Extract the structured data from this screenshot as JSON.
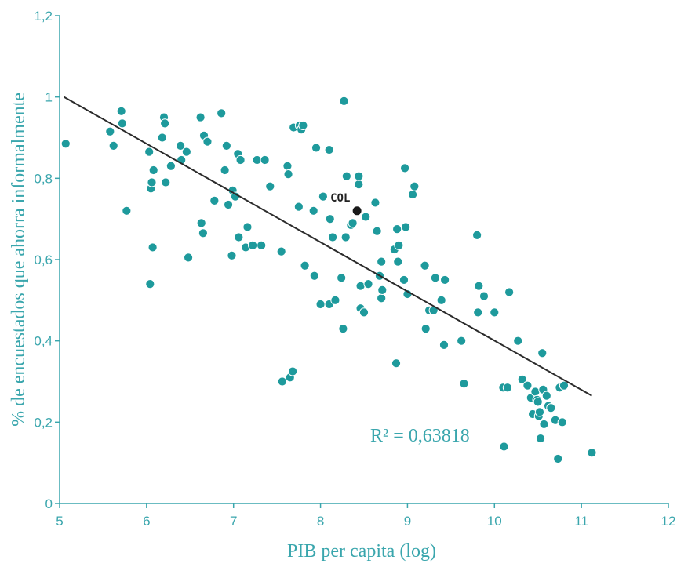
{
  "chart_data": {
    "type": "scatter",
    "xlabel": "PIB per capita (log)",
    "ylabel": "% de encuestados que ahorra informalmente",
    "xlim": [
      5,
      12
    ],
    "ylim": [
      0,
      1.2
    ],
    "x_ticks": [
      "5",
      "6",
      "7",
      "8",
      "9",
      "10",
      "11",
      "12"
    ],
    "y_ticks": [
      "0",
      "0,2",
      "0,4",
      "0,6",
      "0,8",
      "1",
      "1,2"
    ],
    "grid": false,
    "annotation": "R² = 0,63818",
    "trendline": {
      "x": [
        5.05,
        11.12
      ],
      "y": [
        1.0,
        0.265
      ]
    },
    "highlight": {
      "label": "COL",
      "x": 8.42,
      "y": 0.72
    },
    "colors": {
      "points": "#1e9a9c",
      "axis": "#3aa6ad",
      "trendline": "#2b2b2b",
      "highlight": "#1a1a1a"
    },
    "points": [
      [
        5.07,
        0.885
      ],
      [
        5.58,
        0.915
      ],
      [
        5.62,
        0.88
      ],
      [
        5.71,
        0.965
      ],
      [
        5.72,
        0.935
      ],
      [
        5.77,
        0.72
      ],
      [
        6.03,
        0.865
      ],
      [
        6.04,
        0.54
      ],
      [
        6.05,
        0.775
      ],
      [
        6.06,
        0.79
      ],
      [
        6.07,
        0.63
      ],
      [
        6.08,
        0.82
      ],
      [
        6.18,
        0.9
      ],
      [
        6.2,
        0.95
      ],
      [
        6.21,
        0.935
      ],
      [
        6.22,
        0.79
      ],
      [
        6.28,
        0.83
      ],
      [
        6.39,
        0.88
      ],
      [
        6.4,
        0.845
      ],
      [
        6.46,
        0.865
      ],
      [
        6.48,
        0.605
      ],
      [
        6.62,
        0.95
      ],
      [
        6.63,
        0.69
      ],
      [
        6.65,
        0.665
      ],
      [
        6.66,
        0.905
      ],
      [
        6.7,
        0.89
      ],
      [
        6.78,
        0.745
      ],
      [
        6.86,
        0.96
      ],
      [
        6.9,
        0.82
      ],
      [
        6.92,
        0.88
      ],
      [
        6.94,
        0.735
      ],
      [
        6.98,
        0.61
      ],
      [
        6.99,
        0.77
      ],
      [
        7.02,
        0.755
      ],
      [
        7.05,
        0.86
      ],
      [
        7.06,
        0.655
      ],
      [
        7.08,
        0.845
      ],
      [
        7.14,
        0.63
      ],
      [
        7.16,
        0.68
      ],
      [
        7.22,
        0.635
      ],
      [
        7.27,
        0.845
      ],
      [
        7.32,
        0.635
      ],
      [
        7.36,
        0.845
      ],
      [
        7.42,
        0.78
      ],
      [
        7.55,
        0.62
      ],
      [
        7.56,
        0.3
      ],
      [
        7.62,
        0.83
      ],
      [
        7.63,
        0.81
      ],
      [
        7.65,
        0.31
      ],
      [
        7.68,
        0.325
      ],
      [
        7.69,
        0.925
      ],
      [
        7.76,
        0.93
      ],
      [
        7.78,
        0.92
      ],
      [
        7.8,
        0.93
      ],
      [
        7.75,
        0.73
      ],
      [
        7.82,
        0.585
      ],
      [
        7.92,
        0.72
      ],
      [
        7.93,
        0.56
      ],
      [
        7.95,
        0.875
      ],
      [
        8.0,
        0.49
      ],
      [
        8.03,
        0.755
      ],
      [
        8.1,
        0.87
      ],
      [
        8.1,
        0.49
      ],
      [
        8.11,
        0.7
      ],
      [
        8.14,
        0.655
      ],
      [
        8.17,
        0.5
      ],
      [
        8.24,
        0.555
      ],
      [
        8.26,
        0.43
      ],
      [
        8.27,
        0.99
      ],
      [
        8.29,
        0.655
      ],
      [
        8.3,
        0.805
      ],
      [
        8.35,
        0.685
      ],
      [
        8.37,
        0.69
      ],
      [
        8.44,
        0.785
      ],
      [
        8.44,
        0.805
      ],
      [
        8.46,
        0.48
      ],
      [
        8.46,
        0.535
      ],
      [
        8.5,
        0.47
      ],
      [
        8.52,
        0.705
      ],
      [
        8.55,
        0.54
      ],
      [
        8.63,
        0.74
      ],
      [
        8.65,
        0.67
      ],
      [
        8.68,
        0.56
      ],
      [
        8.7,
        0.595
      ],
      [
        8.7,
        0.505
      ],
      [
        8.71,
        0.525
      ],
      [
        8.85,
        0.625
      ],
      [
        8.87,
        0.345
      ],
      [
        8.88,
        0.675
      ],
      [
        8.89,
        0.595
      ],
      [
        8.9,
        0.635
      ],
      [
        8.96,
        0.55
      ],
      [
        8.97,
        0.825
      ],
      [
        8.98,
        0.68
      ],
      [
        9.0,
        0.515
      ],
      [
        9.06,
        0.76
      ],
      [
        9.08,
        0.78
      ],
      [
        9.2,
        0.585
      ],
      [
        9.21,
        0.43
      ],
      [
        9.25,
        0.475
      ],
      [
        9.3,
        0.475
      ],
      [
        9.32,
        0.555
      ],
      [
        9.39,
        0.5
      ],
      [
        9.42,
        0.39
      ],
      [
        9.43,
        0.55
      ],
      [
        9.62,
        0.4
      ],
      [
        9.65,
        0.295
      ],
      [
        9.8,
        0.66
      ],
      [
        9.81,
        0.47
      ],
      [
        9.82,
        0.535
      ],
      [
        9.88,
        0.51
      ],
      [
        10.0,
        0.47
      ],
      [
        10.1,
        0.285
      ],
      [
        10.11,
        0.14
      ],
      [
        10.15,
        0.285
      ],
      [
        10.17,
        0.52
      ],
      [
        10.27,
        0.4
      ],
      [
        10.32,
        0.305
      ],
      [
        10.38,
        0.29
      ],
      [
        10.42,
        0.26
      ],
      [
        10.44,
        0.22
      ],
      [
        10.47,
        0.275
      ],
      [
        10.49,
        0.255
      ],
      [
        10.5,
        0.25
      ],
      [
        10.51,
        0.215
      ],
      [
        10.52,
        0.225
      ],
      [
        10.53,
        0.16
      ],
      [
        10.55,
        0.37
      ],
      [
        10.56,
        0.28
      ],
      [
        10.57,
        0.195
      ],
      [
        10.6,
        0.265
      ],
      [
        10.62,
        0.24
      ],
      [
        10.65,
        0.235
      ],
      [
        10.7,
        0.205
      ],
      [
        10.73,
        0.11
      ],
      [
        10.75,
        0.285
      ],
      [
        10.78,
        0.2
      ],
      [
        10.8,
        0.29
      ],
      [
        11.12,
        0.125
      ]
    ]
  }
}
